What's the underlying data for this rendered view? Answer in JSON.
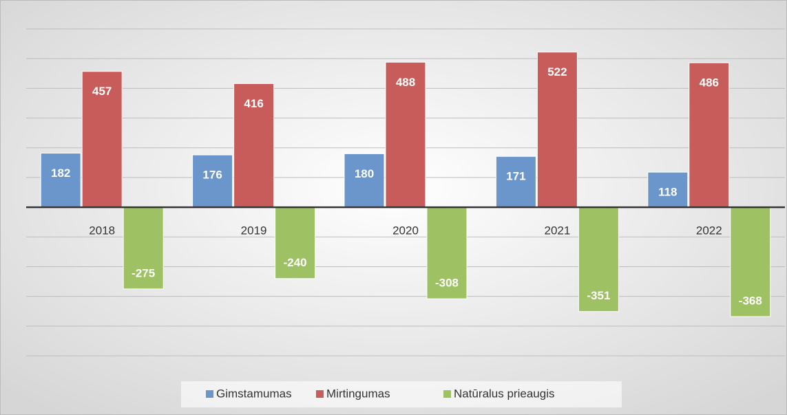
{
  "chart_data": {
    "type": "bar",
    "categories": [
      "2018",
      "2019",
      "2020",
      "2021",
      "2022"
    ],
    "series": [
      {
        "name": "Gimstamumas",
        "color": "#6a96cc",
        "values": [
          182,
          176,
          180,
          171,
          118
        ]
      },
      {
        "name": "Mirtingumas",
        "color": "#c85c5a",
        "values": [
          457,
          416,
          488,
          522,
          486
        ]
      },
      {
        "name": "Natūralus prieaugis",
        "color": "#9dc163",
        "values": [
          -275,
          -240,
          -308,
          -351,
          -368
        ]
      }
    ],
    "ylim": [
      -500,
      600
    ],
    "yticks": [
      -500,
      -400,
      -300,
      -200,
      -100,
      0,
      100,
      200,
      300,
      400,
      500,
      600
    ],
    "grid": true,
    "legend": "bottom"
  }
}
